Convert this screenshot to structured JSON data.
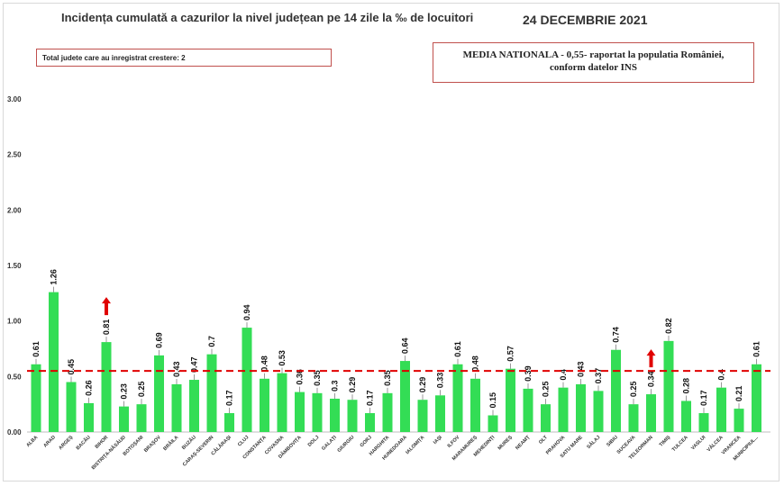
{
  "header": {
    "title": "Incidența cumulată a cazurilor la nivel județean pe 14 zile la ‰ de locuitori",
    "date": "24 DECEMBRIE 2021"
  },
  "info_left": "Total judete care au inregistrat crestere: 2",
  "info_right": {
    "line1": "MEDIA NATIONALA - 0,55-  raportat la populatia României,",
    "line2": "conform datelor INS"
  },
  "colors": {
    "bar": "#33dd55",
    "average_line": "#e00000",
    "arrow": "#e00000",
    "box_border": "#c0504d"
  },
  "chart_data": {
    "type": "bar",
    "title": "Incidența cumulată a cazurilor la nivel județean pe 14 zile la ‰ de locuitori",
    "ylim": [
      0,
      3
    ],
    "yticks": [
      "0.00",
      "0.50",
      "1.00",
      "1.50",
      "2.00",
      "2.50",
      "3.00"
    ],
    "average": 0.55,
    "grid": false,
    "categories": [
      "ALBA",
      "ARAD",
      "ARGEȘ",
      "BACĂU",
      "BIHOR",
      "BISTRIȚA-NĂSĂUD",
      "BOTOȘANI",
      "BRAȘOV",
      "BRĂILA",
      "BUZĂU",
      "CARAȘ-SEVERIN",
      "CĂLĂRAȘI",
      "CLUJ",
      "CONSTANȚA",
      "COVASNA",
      "DÂMBOVIȚA",
      "DOLJ",
      "GALAȚI",
      "GIURGIU",
      "GORJ",
      "HARGHITA",
      "HUNEDOARA",
      "IALOMIȚA",
      "IAȘI",
      "ILFOV",
      "MARAMUREȘ",
      "MEHEDINȚI",
      "MUREȘ",
      "NEAMȚ",
      "OLT",
      "PRAHOVA",
      "SATU MARE",
      "SĂLAJ",
      "SIBIU",
      "SUCEAVA",
      "TELEORMAN",
      "TIMIȘ",
      "TULCEA",
      "VASLUI",
      "VÂLCEA",
      "VRANCEA",
      "MUNICIPIUL..."
    ],
    "values": [
      0.61,
      1.26,
      0.45,
      0.26,
      0.81,
      0.23,
      0.25,
      0.69,
      0.43,
      0.47,
      0.7,
      0.17,
      0.94,
      0.48,
      0.53,
      0.36,
      0.35,
      0.3,
      0.29,
      0.17,
      0.35,
      0.64,
      0.29,
      0.33,
      0.61,
      0.48,
      0.15,
      0.57,
      0.39,
      0.25,
      0.4,
      0.43,
      0.37,
      0.74,
      0.25,
      0.34,
      0.82,
      0.28,
      0.17,
      0.4,
      0.21,
      0.61
    ],
    "value_labels": [
      "0.61",
      "1.26",
      "0.45",
      "0.26",
      "0.81",
      "0.23",
      "0.25",
      "0.69",
      "0.43",
      "0.47",
      "0.7",
      "0.17",
      "0.94",
      "0.48",
      "0.53",
      "0.36",
      "0.35",
      "0.3",
      "0.29",
      "0.17",
      "0.35",
      "0.64",
      "0.29",
      "0.33",
      "0.61",
      "0.48",
      "0.15",
      "0.57",
      "0.39",
      "0.25",
      "0.4",
      "0.43",
      "0.37",
      "0.74",
      "0.25",
      "0.34",
      "0.82",
      "0.28",
      "0.17",
      "0.4",
      "0.21",
      "0.61"
    ],
    "increase_markers": [
      "BIHOR",
      "TELEORMAN"
    ]
  }
}
